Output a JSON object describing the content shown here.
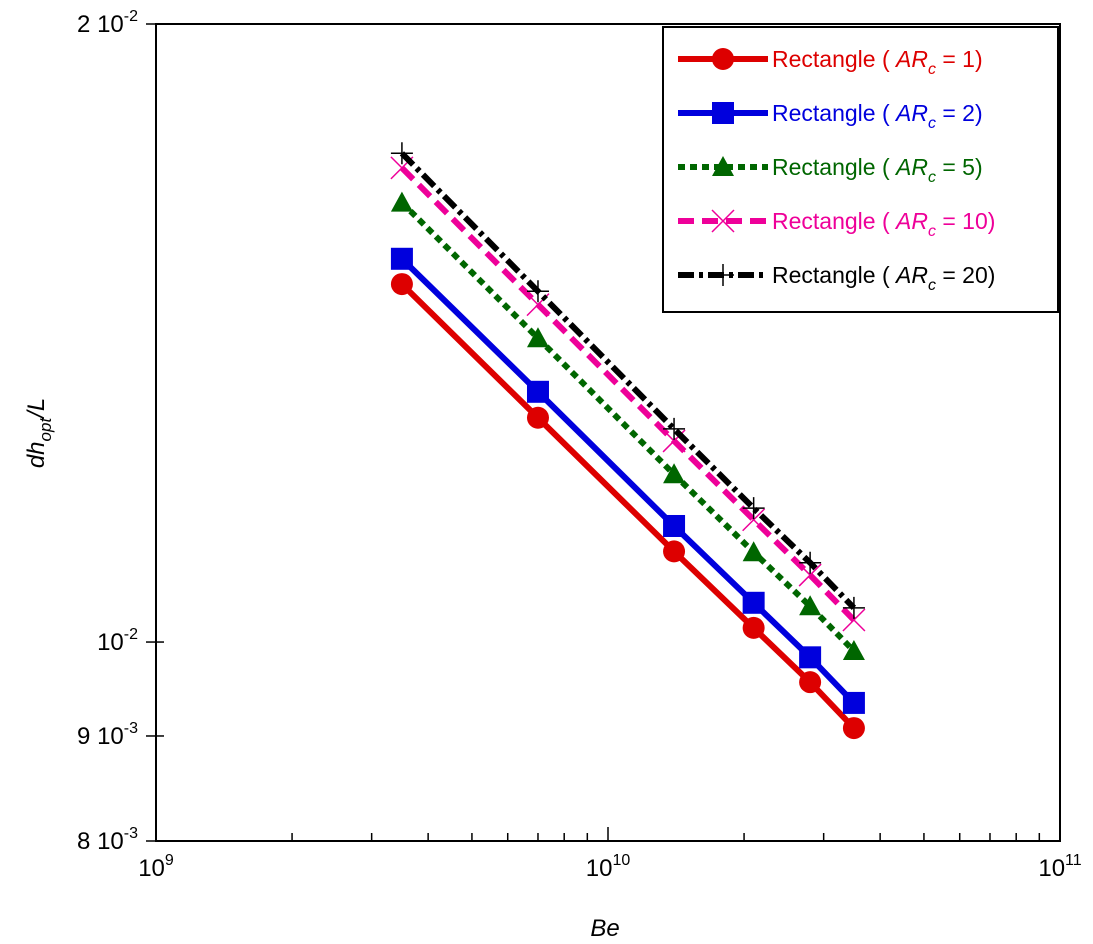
{
  "chart_data": {
    "type": "line",
    "xlabel": "Be",
    "ylabel": {
      "base": "dh",
      "sub": "opt",
      "tail": "/L"
    },
    "xscale": "log",
    "yscale": "log",
    "xlim": [
      1000000000.0,
      100000000000.0
    ],
    "ylim": [
      0.008,
      0.02
    ],
    "grid": false,
    "legend_position": "top-right",
    "x_tick_labels": [
      {
        "value": 1000000000.0,
        "base": "10",
        "exp": "9"
      },
      {
        "value": 10000000000.0,
        "base": "10",
        "exp": "10"
      },
      {
        "value": 100000000000.0,
        "base": "10",
        "exp": "11"
      }
    ],
    "y_tick_labels": [
      {
        "value": 0.02,
        "mant": "2 10",
        "exp": "-2"
      },
      {
        "value": 0.01,
        "mant": "10",
        "exp": "-2"
      },
      {
        "value": 0.009,
        "mant": "9 10",
        "exp": "-3"
      },
      {
        "value": 0.008,
        "mant": "8 10",
        "exp": "-3"
      }
    ],
    "x": [
      3500000000.0,
      7000000000.0,
      14000000000.0,
      21000000000.0,
      28000000000.0,
      35000000000.0
    ],
    "series": [
      {
        "name": "Rectangle ( AR_c = 1)",
        "legend_prefix": "Rectangle ( ",
        "legend_var": "AR",
        "legend_sub": "c",
        "legend_suffix": " = 1)",
        "color": "#dd0000",
        "marker": "circle",
        "dash": "solid",
        "values": [
          0.01494,
          0.01286,
          0.01107,
          0.01016,
          0.00956,
          0.00908
        ]
      },
      {
        "name": "Rectangle ( AR_c = 2)",
        "legend_prefix": "Rectangle ( ",
        "legend_var": "AR",
        "legend_sub": "c",
        "legend_suffix": " = 2)",
        "color": "#0000dd",
        "marker": "square",
        "dash": "solid",
        "values": [
          0.01537,
          0.01324,
          0.01139,
          0.01045,
          0.00983,
          0.00934
        ]
      },
      {
        "name": "Rectangle ( AR_c = 5)",
        "legend_prefix": "Rectangle ( ",
        "legend_var": "AR",
        "legend_sub": "c",
        "legend_suffix": " = 5)",
        "color": "#006600",
        "marker": "triangle",
        "dash": "dotted",
        "values": [
          0.01637,
          0.01406,
          0.01207,
          0.01106,
          0.01041,
          0.0099
        ]
      },
      {
        "name": "Rectangle ( AR_c = 10)",
        "legend_prefix": "Rectangle ( ",
        "legend_var": "AR",
        "legend_sub": "c",
        "legend_suffix": " = 10)",
        "color": "#ee0099",
        "marker": "x",
        "dash": "dashed",
        "values": [
          0.01702,
          0.0146,
          0.01253,
          0.01147,
          0.01078,
          0.01025
        ]
      },
      {
        "name": "Rectangle ( AR_c = 20)",
        "legend_prefix": "Rectangle ( ",
        "legend_var": "AR",
        "legend_sub": "c",
        "legend_suffix": " = 20)",
        "color": "#000000",
        "marker": "plus",
        "dash": "dashdot",
        "values": [
          0.0173,
          0.01482,
          0.0127,
          0.01162,
          0.01093,
          0.01039
        ]
      }
    ]
  }
}
